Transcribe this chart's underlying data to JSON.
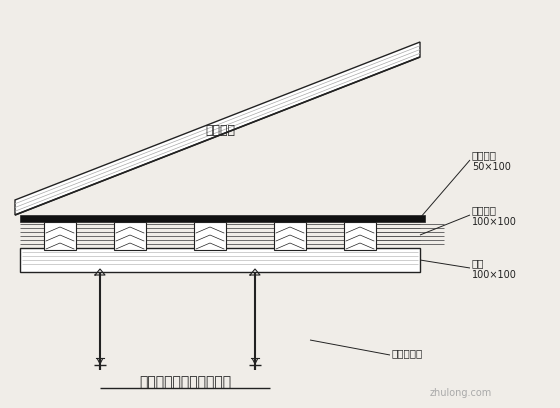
{
  "title": "楼面早拆体系支模示意图",
  "bg_color": "#f0ede8",
  "labels": {
    "zhujiao_heban": "竹胶合板",
    "bu_feng_mu_tiao": "补缝木条",
    "bu_feng_size": "50×100",
    "ci_liang_mu_fang": "次梁木方",
    "ci_liang_size": "100×100",
    "zhu_liang": "主梁",
    "zhu_liang_size": "100×100",
    "ke_tiao_zao_chai_tou": "可调早拆头"
  },
  "line_color": "#222222",
  "text_color": "#222222",
  "watermark": "zhulong.com"
}
